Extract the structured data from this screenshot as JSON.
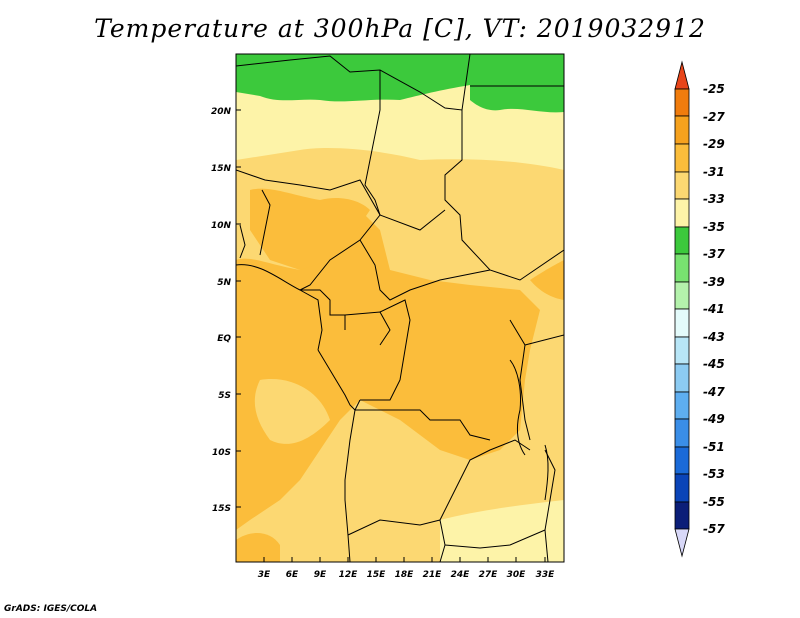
{
  "title": "Temperature at 300hPa [C], VT: 2019032912",
  "credit": "GrADS: IGES/COLA",
  "map": {
    "lat_labels": [
      "20N",
      "15N",
      "10N",
      "5N",
      "EQ",
      "5S",
      "10S",
      "15S"
    ],
    "lon_labels": [
      "3E",
      "6E",
      "9E",
      "12E",
      "15E",
      "18E",
      "21E",
      "24E",
      "27E",
      "30E",
      "33E"
    ]
  },
  "colorbar": {
    "labels": [
      "-25",
      "-27",
      "-29",
      "-31",
      "-33",
      "-35",
      "-37",
      "-39",
      "-41",
      "-43",
      "-45",
      "-47",
      "-49",
      "-51",
      "-53",
      "-55",
      "-57"
    ],
    "colors": [
      "#e8451a",
      "#f07c0d",
      "#f6a21e",
      "#fbbd3b",
      "#fcd872",
      "#fdf3a8",
      "#3cc93c",
      "#78e270",
      "#b4f2ac",
      "#e4fbfb",
      "#b8e6f7",
      "#8ccbf2",
      "#5eaef0",
      "#3a8ee8",
      "#1a6ad8",
      "#0a44b8",
      "#0b1e78",
      "#d8d8f8"
    ]
  }
}
